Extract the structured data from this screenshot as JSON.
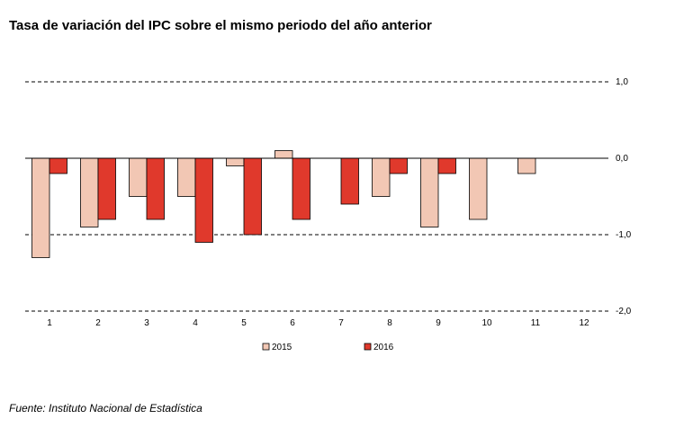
{
  "chart_data": {
    "type": "bar",
    "title": "Tasa de variación del IPC sobre el mismo periodo del año anterior",
    "categories": [
      "1",
      "2",
      "3",
      "4",
      "5",
      "6",
      "7",
      "8",
      "9",
      "10",
      "11",
      "12"
    ],
    "series": [
      {
        "name": "2015",
        "values": [
          -1.3,
          -0.9,
          -0.5,
          -0.5,
          -0.1,
          0.1,
          null,
          -0.5,
          -0.9,
          -0.8,
          -0.2,
          null
        ],
        "color": "#f2c7b4"
      },
      {
        "name": "2016",
        "values": [
          -0.2,
          -0.8,
          -0.8,
          -1.1,
          -1.0,
          -0.8,
          -0.6,
          -0.2,
          -0.2,
          null,
          null,
          null
        ],
        "color": "#e0392c"
      }
    ],
    "ylim": [
      -2.0,
      1.0
    ],
    "yticks": [
      1.0,
      0.0,
      -1.0,
      -2.0
    ],
    "ytick_labels": [
      "1,0",
      "0,0",
      "-1,0",
      "-2,0"
    ],
    "y_axis_side": "right",
    "grid": "dashed",
    "legend_position": "bottom"
  },
  "source": "Fuente: Instituto Nacional de Estadística"
}
